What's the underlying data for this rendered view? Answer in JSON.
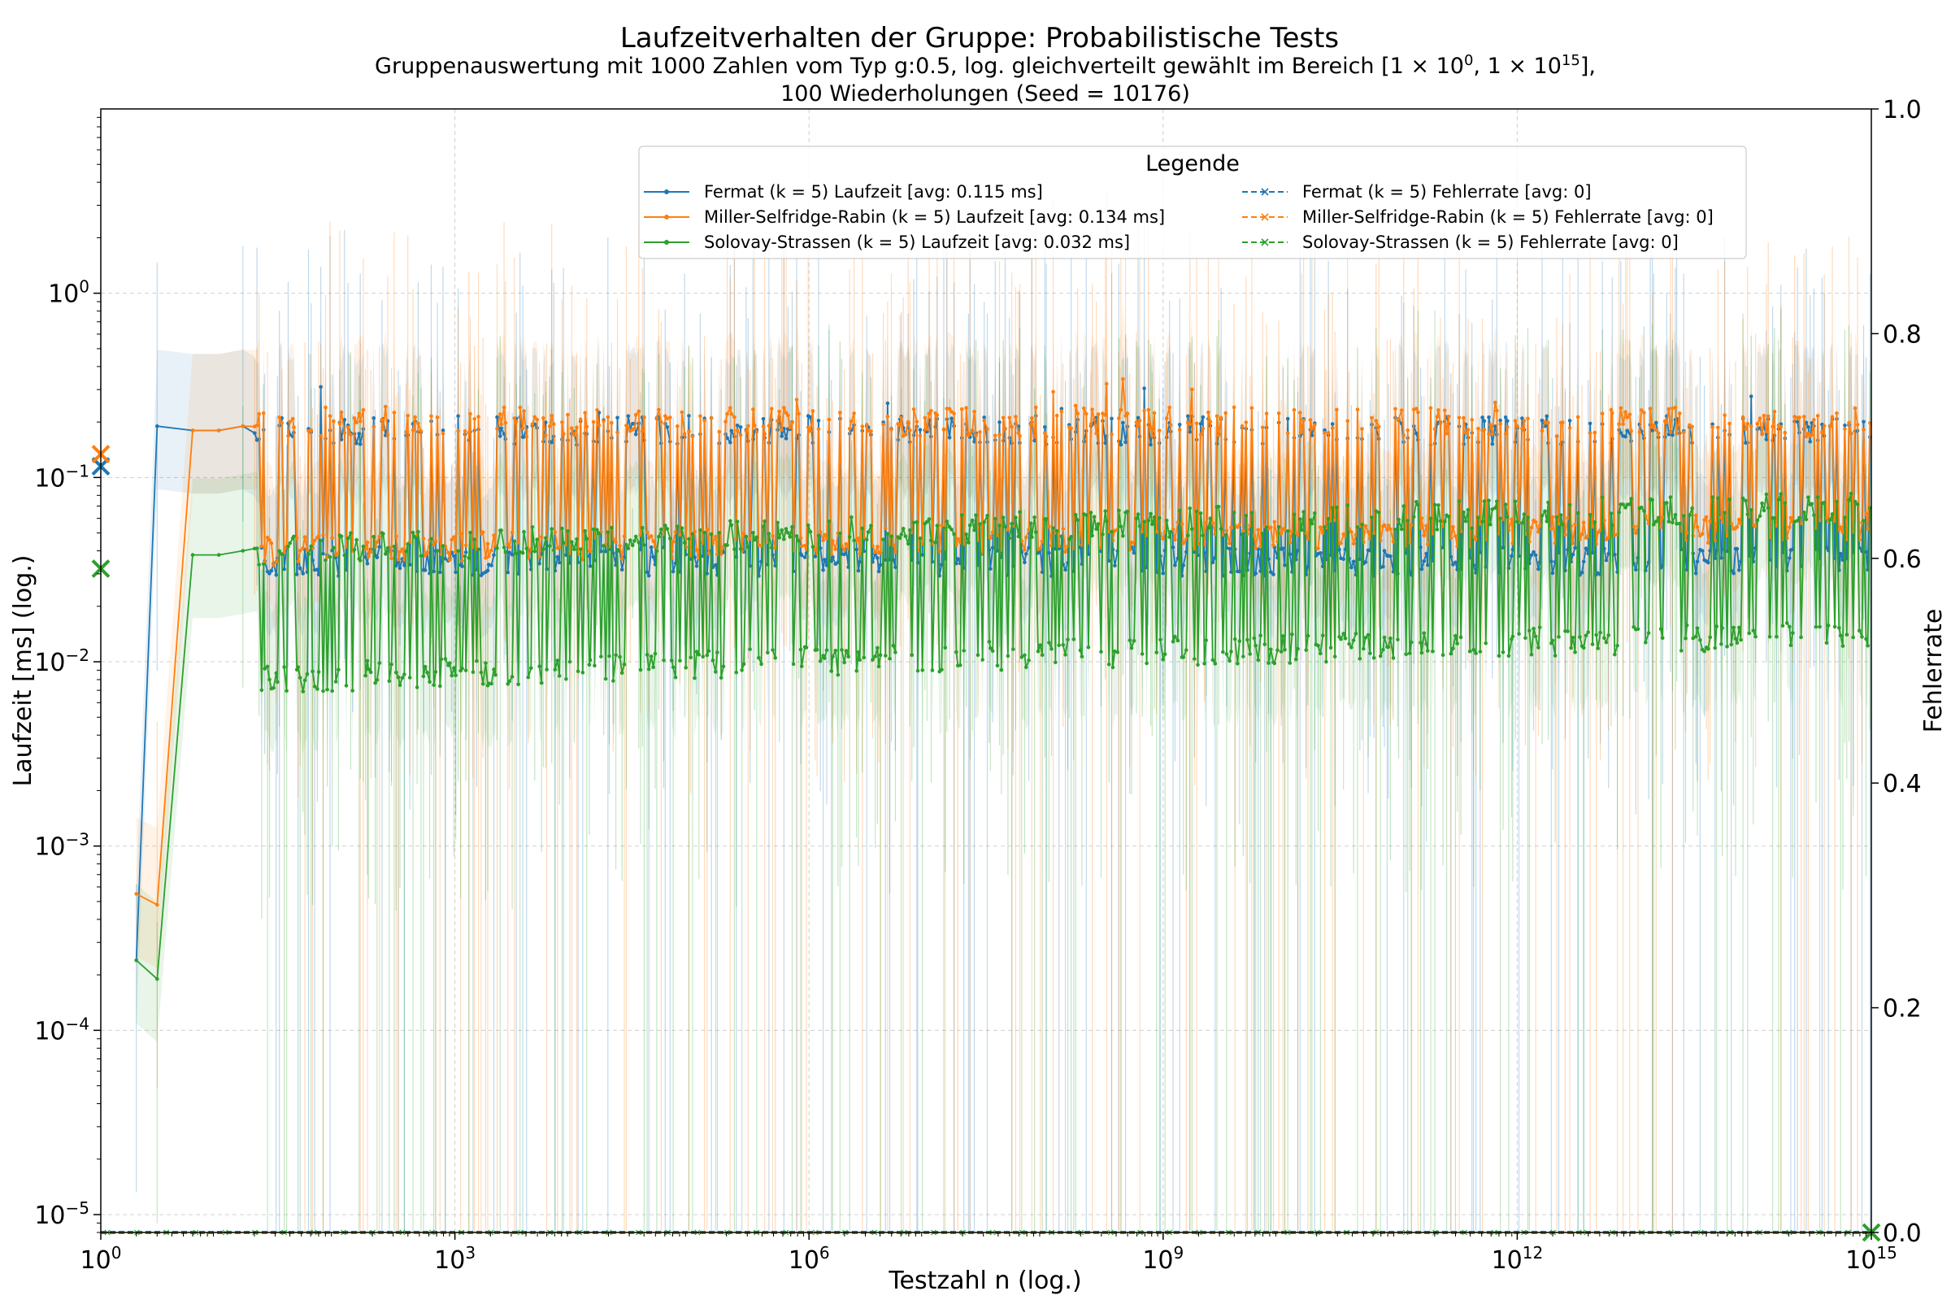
{
  "chart_data": {
    "type": "line",
    "title": "Laufzeitverhalten der Gruppe: Probabilistische Tests",
    "subtitle_line1_parts": [
      "Gruppenauswertung mit 1000 Zahlen vom Typ g:0.5, log. gleichverteilt gewählt im Bereich [1 × 10",
      "0",
      ", 1 × 10",
      "15",
      "],"
    ],
    "subtitle_line2": "100 Wiederholungen (Seed = 10176)",
    "xlabel": "Testzahl n (log.)",
    "ylabel": "Laufzeit [ms] (log.)",
    "y2label": "Fehlerrate",
    "xscale": "log",
    "yscale": "log",
    "xlim": [
      1,
      1000000000000000.0
    ],
    "ylim": [
      8e-06,
      10
    ],
    "y2lim": [
      0,
      1
    ],
    "grid": true,
    "x_ticks": [
      {
        "value": 1,
        "base": "10",
        "exp": "0"
      },
      {
        "value": 1000,
        "base": "10",
        "exp": "3"
      },
      {
        "value": 1000000,
        "base": "10",
        "exp": "6"
      },
      {
        "value": 1000000000,
        "base": "10",
        "exp": "9"
      },
      {
        "value": 1000000000000,
        "base": "10",
        "exp": "12"
      },
      {
        "value": 1000000000000000,
        "base": "10",
        "exp": "15"
      }
    ],
    "y_ticks": [
      {
        "value": 1,
        "base": "10",
        "exp": "0"
      },
      {
        "value": 0.1,
        "base": "10",
        "exp": "−1"
      },
      {
        "value": 0.01,
        "base": "10",
        "exp": "−2"
      },
      {
        "value": 0.001,
        "base": "10",
        "exp": "−3"
      },
      {
        "value": 0.0001,
        "base": "10",
        "exp": "−4"
      },
      {
        "value": 1e-05,
        "base": "10",
        "exp": "−5"
      }
    ],
    "y2_ticks": [
      "0.0",
      "0.2",
      "0.4",
      "0.6",
      "0.8",
      "1.0"
    ],
    "legend": {
      "title": "Legende",
      "placement": "upper-center",
      "entries": [
        {
          "label": "Fermat (k = 5) Laufzeit [avg: 0.115 ms]",
          "color": "#1f77b4",
          "style": "solid",
          "marker": "dot"
        },
        {
          "label": "Miller-Selfridge-Rabin (k = 5) Laufzeit [avg: 0.134 ms]",
          "color": "#ff7f0e",
          "style": "solid",
          "marker": "dot"
        },
        {
          "label": "Solovay-Strassen (k = 5) Laufzeit [avg: 0.032 ms]",
          "color": "#2ca02c",
          "style": "solid",
          "marker": "dot"
        },
        {
          "label": "Fermat (k = 5) Fehlerrate [avg: 0]",
          "color": "#1f77b4",
          "style": "dashed",
          "marker": "x"
        },
        {
          "label": "Miller-Selfridge-Rabin (k = 5) Fehlerrate [avg: 0]",
          "color": "#ff7f0e",
          "style": "dashed",
          "marker": "x"
        },
        {
          "label": "Solovay-Strassen (k = 5) Fehlerrate [avg: 0]",
          "color": "#2ca02c",
          "style": "dashed",
          "marker": "x"
        }
      ]
    },
    "averages": [
      {
        "name": "Fermat (k = 5)",
        "value": 0.115,
        "color": "#1f77b4"
      },
      {
        "name": "Miller-Selfridge-Rabin (k = 5)",
        "value": 0.134,
        "color": "#ff7f0e"
      },
      {
        "name": "Solovay-Strassen (k = 5)",
        "value": 0.032,
        "color": "#2ca02c"
      }
    ],
    "error_rate_average": 0,
    "series_model": {
      "points": 1000,
      "x_range": [
        1,
        1000000000000000.0
      ],
      "start": [
        {
          "x": 2,
          "fermat": 0.00024,
          "msr": 0.00055,
          "ss": 0.00024
        },
        {
          "x": 3,
          "fermat": 0.19,
          "msr": 0.00048,
          "ss": 0.00019
        },
        {
          "x": 6,
          "fermat": 0.18,
          "msr": 0.18,
          "ss": 0.038
        },
        {
          "x": 10,
          "fermat": 0.18,
          "msr": 0.18,
          "ss": 0.038
        },
        {
          "x": 16,
          "fermat": 0.19,
          "msr": 0.19,
          "ss": 0.04
        }
      ],
      "fermat": {
        "high": 0.18,
        "low": 0.035
      },
      "msr": {
        "high": 0.2,
        "low": 0.04
      },
      "ss": {
        "high_start": 0.04,
        "high_end": 0.07,
        "low_start": 0.008,
        "low_end": 0.014
      },
      "seed": 10176
    }
  }
}
